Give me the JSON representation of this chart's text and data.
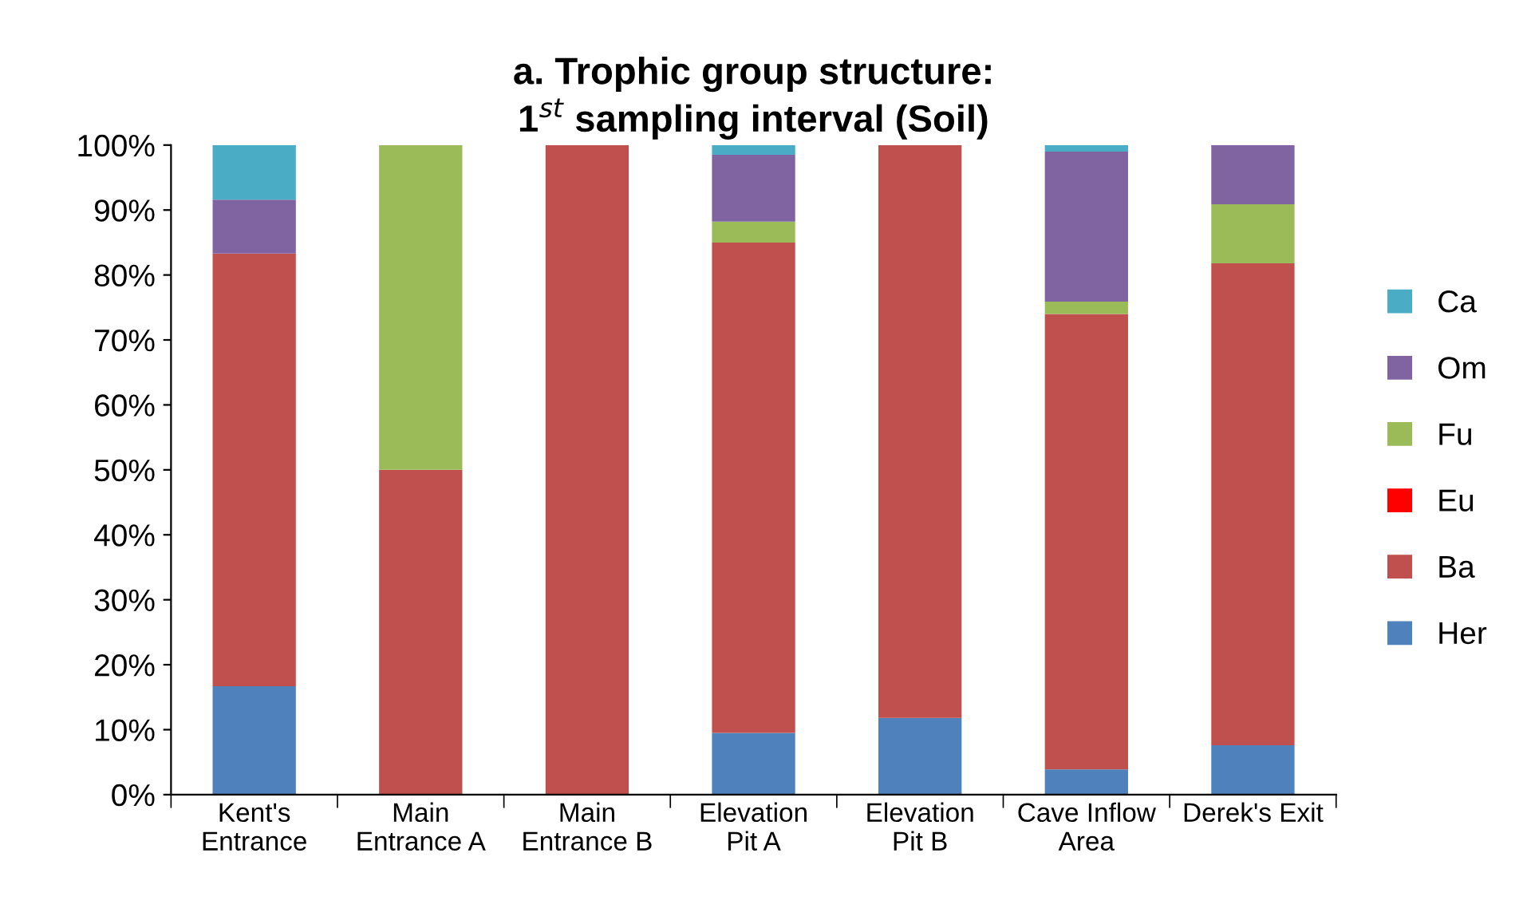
{
  "chart_data": {
    "type": "bar",
    "stacked": true,
    "title": "a. Trophic group structure:\n1$^{st}$ sampling interval (Soil)",
    "categories": [
      "Kent's\nEntrance",
      "Main\nEntrance A",
      "Main\nEntrance B",
      "Elevation\nPit A",
      "Elevation\nPit B",
      "Cave Inflow\nArea",
      "Derek's Exit"
    ],
    "series": [
      {
        "name": "Her",
        "color": "#4f81bd",
        "values": [
          16.7,
          0,
          0,
          9.5,
          11.8,
          3.9,
          7.6
        ]
      },
      {
        "name": "Ba",
        "color": "#c0504d",
        "values": [
          66.6,
          50,
          100,
          75.5,
          88.2,
          70.1,
          74.2
        ]
      },
      {
        "name": "Eu",
        "color": "#ff0000",
        "values": [
          0,
          0,
          0,
          0,
          0,
          0,
          0
        ]
      },
      {
        "name": "Fu",
        "color": "#9bbb59",
        "values": [
          0,
          50,
          0,
          3.2,
          0,
          1.9,
          9.1
        ]
      },
      {
        "name": "Om",
        "color": "#8064a2",
        "values": [
          8.3,
          0,
          0,
          10.3,
          0,
          23.1,
          9.1
        ]
      },
      {
        "name": "Ca",
        "color": "#4bacc6",
        "values": [
          8.4,
          0,
          0,
          1.5,
          0,
          1.0,
          0
        ]
      }
    ],
    "ylim": [
      0,
      100
    ],
    "yticks": [
      {
        "value": 0,
        "label": "0%"
      },
      {
        "value": 10,
        "label": "10%"
      },
      {
        "value": 20,
        "label": "20%"
      },
      {
        "value": 30,
        "label": "30%"
      },
      {
        "value": 40,
        "label": "40%"
      },
      {
        "value": 50,
        "label": "50%"
      },
      {
        "value": 60,
        "label": "60%"
      },
      {
        "value": 70,
        "label": "70%"
      },
      {
        "value": 80,
        "label": "80%"
      },
      {
        "value": 90,
        "label": "90%"
      },
      {
        "value": 100,
        "label": "100%"
      }
    ],
    "legend": "right",
    "grid": false
  }
}
